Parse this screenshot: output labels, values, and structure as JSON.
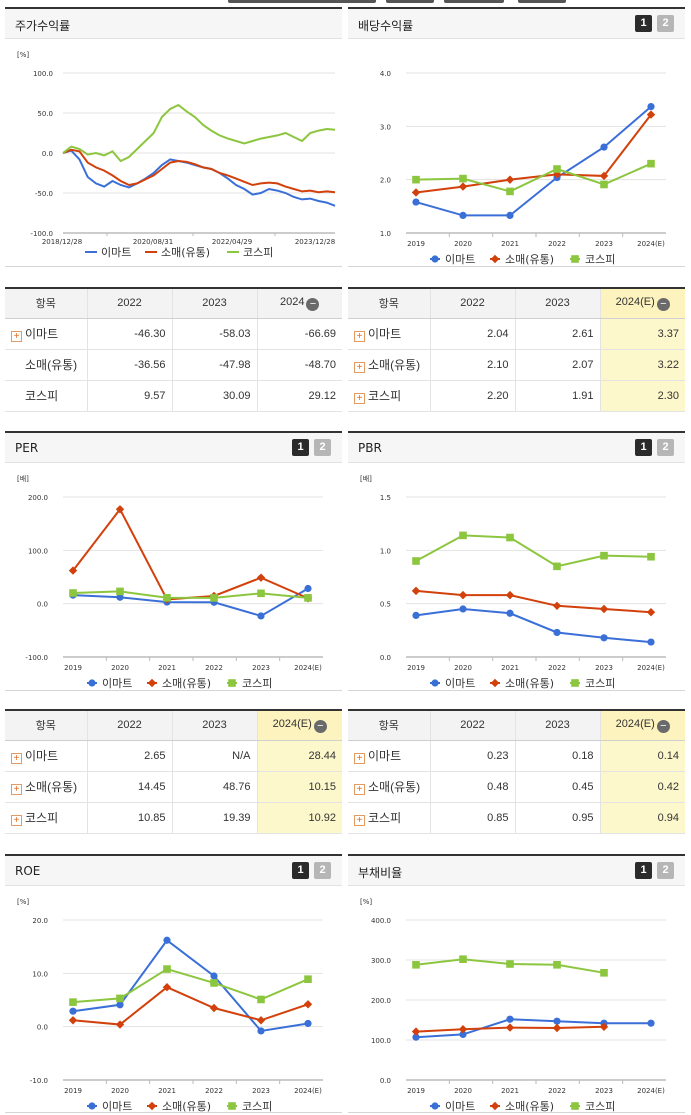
{
  "legend": [
    "이마트",
    "소매(유통)",
    "코스피"
  ],
  "series_colors": [
    "#3a6fd8",
    "#d2410c",
    "#8cc63f"
  ],
  "panels": {
    "price_return": {
      "title": "주가수익률",
      "chart_data": {
        "type": "line",
        "unit": "[%]",
        "ylim": [
          -100,
          100
        ],
        "yticks": [
          "100.0",
          "50.0",
          "0.0",
          "-50.0",
          "-100.0"
        ],
        "x_tick_labels": [
          "2018/12/28",
          "2020/08/31",
          "2022/04/29",
          "2023/12/28"
        ],
        "series": [
          {
            "name": "이마트",
            "values": [
              0,
              3,
              -8,
              -30,
              -38,
              -42,
              -35,
              -40,
              -43,
              -38,
              -32,
              -25,
              -15,
              -8,
              -10,
              -12,
              -15,
              -18,
              -20,
              -25,
              -32,
              -40,
              -45,
              -52,
              -50,
              -45,
              -47,
              -50,
              -55,
              -58,
              -57,
              -60,
              -62,
              -66
            ]
          },
          {
            "name": "소매(유통)",
            "values": [
              0,
              4,
              2,
              -12,
              -18,
              -22,
              -28,
              -35,
              -40,
              -38,
              -33,
              -28,
              -20,
              -12,
              -10,
              -11,
              -14,
              -18,
              -20,
              -25,
              -28,
              -32,
              -36,
              -40,
              -38,
              -37,
              -38,
              -42,
              -45,
              -48,
              -47,
              -49,
              -48,
              -49
            ]
          },
          {
            "name": "코스피",
            "values": [
              0,
              8,
              5,
              -2,
              0,
              -3,
              2,
              -10,
              -5,
              5,
              15,
              25,
              45,
              55,
              60,
              52,
              45,
              35,
              28,
              22,
              18,
              15,
              12,
              15,
              18,
              20,
              22,
              25,
              20,
              15,
              25,
              28,
              30,
              29
            ]
          }
        ]
      },
      "table": {
        "headers": [
          "항목",
          "2022",
          "2023",
          "2024"
        ],
        "rows": [
          {
            "label": "이마트",
            "values": [
              "-46.30",
              "-58.03",
              "-66.69"
            ]
          },
          {
            "label": "소매(유통)",
            "values": [
              "-36.56",
              "-47.98",
              "-48.70"
            ]
          },
          {
            "label": "코스피",
            "values": [
              "9.57",
              "30.09",
              "29.12"
            ]
          }
        ]
      }
    },
    "dividend": {
      "title": "배당수익률",
      "chart_data": {
        "type": "line",
        "ylim": [
          1.0,
          4.0
        ],
        "yticks": [
          "4.0",
          "3.0",
          "2.0",
          "1.0"
        ],
        "categories": [
          "2019",
          "2020",
          "2021",
          "2022",
          "2023",
          "2024(E)"
        ],
        "series": [
          {
            "name": "이마트",
            "values": [
              1.58,
              1.33,
              1.33,
              2.04,
              2.61,
              3.37
            ]
          },
          {
            "name": "소매(유통)",
            "values": [
              1.76,
              1.87,
              2.0,
              2.1,
              2.07,
              3.22
            ]
          },
          {
            "name": "코스피",
            "values": [
              2.0,
              2.02,
              1.78,
              2.2,
              1.91,
              2.3
            ]
          }
        ]
      },
      "table": {
        "headers": [
          "항목",
          "2022",
          "2023",
          "2024(E)"
        ],
        "rows": [
          {
            "label": "이마트",
            "values": [
              "2.04",
              "2.61",
              "3.37"
            ]
          },
          {
            "label": "소매(유통)",
            "values": [
              "2.10",
              "2.07",
              "3.22"
            ]
          },
          {
            "label": "코스피",
            "values": [
              "2.20",
              "1.91",
              "2.30"
            ]
          }
        ]
      }
    },
    "per": {
      "title": "PER",
      "chart_data": {
        "type": "line",
        "unit": "[배]",
        "ylim": [
          -100,
          200
        ],
        "yticks": [
          "200.0",
          "100.0",
          "0.0",
          "-100.0"
        ],
        "categories": [
          "2019",
          "2020",
          "2021",
          "2022",
          "2023",
          "2024(E)"
        ],
        "series": [
          {
            "name": "이마트",
            "values": [
              16,
              12,
              3,
              2.65,
              -23,
              28.44
            ]
          },
          {
            "name": "소매(유통)",
            "values": [
              62,
              177,
              8,
              14.45,
              48.76,
              10.15
            ]
          },
          {
            "name": "코스피",
            "values": [
              20,
              23,
              11,
              10.85,
              19.39,
              10.92
            ]
          }
        ]
      },
      "table": {
        "headers": [
          "항목",
          "2022",
          "2023",
          "2024(E)"
        ],
        "rows": [
          {
            "label": "이마트",
            "values": [
              "2.65",
              "N/A",
              "28.44"
            ]
          },
          {
            "label": "소매(유통)",
            "values": [
              "14.45",
              "48.76",
              "10.15"
            ]
          },
          {
            "label": "코스피",
            "values": [
              "10.85",
              "19.39",
              "10.92"
            ]
          }
        ]
      }
    },
    "pbr": {
      "title": "PBR",
      "chart_data": {
        "type": "line",
        "unit": "[배]",
        "ylim": [
          0.0,
          1.5
        ],
        "yticks": [
          "1.5",
          "1.0",
          "0.5",
          "0.0"
        ],
        "categories": [
          "2019",
          "2020",
          "2021",
          "2022",
          "2023",
          "2024(E)"
        ],
        "series": [
          {
            "name": "이마트",
            "values": [
              0.39,
              0.45,
              0.41,
              0.23,
              0.18,
              0.14
            ]
          },
          {
            "name": "소매(유통)",
            "values": [
              0.62,
              0.58,
              0.58,
              0.48,
              0.45,
              0.42
            ]
          },
          {
            "name": "코스피",
            "values": [
              0.9,
              1.14,
              1.12,
              0.85,
              0.95,
              0.94
            ]
          }
        ]
      },
      "table": {
        "headers": [
          "항목",
          "2022",
          "2023",
          "2024(E)"
        ],
        "rows": [
          {
            "label": "이마트",
            "values": [
              "0.23",
              "0.18",
              "0.14"
            ]
          },
          {
            "label": "소매(유통)",
            "values": [
              "0.48",
              "0.45",
              "0.42"
            ]
          },
          {
            "label": "코스피",
            "values": [
              "0.85",
              "0.95",
              "0.94"
            ]
          }
        ]
      }
    },
    "roe": {
      "title": "ROE",
      "chart_data": {
        "type": "line",
        "unit": "[%]",
        "ylim": [
          -10,
          20
        ],
        "yticks": [
          "20.0",
          "10.0",
          "0.0",
          "-10.0"
        ],
        "categories": [
          "2019",
          "2020",
          "2021",
          "2022",
          "2023",
          "2024(E)"
        ],
        "series": [
          {
            "name": "이마트",
            "values": [
              2.9,
              4.1,
              16.2,
              9.5,
              -0.8,
              0.6
            ]
          },
          {
            "name": "소매(유통)",
            "values": [
              1.2,
              0.4,
              7.4,
              3.5,
              1.2,
              4.2
            ]
          },
          {
            "name": "코스피",
            "values": [
              4.6,
              5.3,
              10.8,
              8.2,
              5.1,
              8.9
            ]
          }
        ]
      }
    },
    "debt": {
      "title": "부채비율",
      "chart_data": {
        "type": "line",
        "unit": "[%]",
        "ylim": [
          0,
          400
        ],
        "yticks": [
          "400.0",
          "300.0",
          "200.0",
          "100.0",
          "0.0"
        ],
        "categories": [
          "2019",
          "2020",
          "2021",
          "2022",
          "2023",
          "2024(E)"
        ],
        "series": [
          {
            "name": "이마트",
            "values": [
              107,
              114,
              152,
              147,
              142,
              142
            ]
          },
          {
            "name": "소매(유통)",
            "values": [
              121,
              127,
              131,
              130,
              133,
              null
            ]
          },
          {
            "name": "코스피",
            "values": [
              288,
              302,
              290,
              288,
              268,
              null
            ]
          }
        ]
      }
    }
  },
  "pager": [
    "1",
    "2"
  ],
  "minus_icon": "−",
  "plus_icon": "+"
}
